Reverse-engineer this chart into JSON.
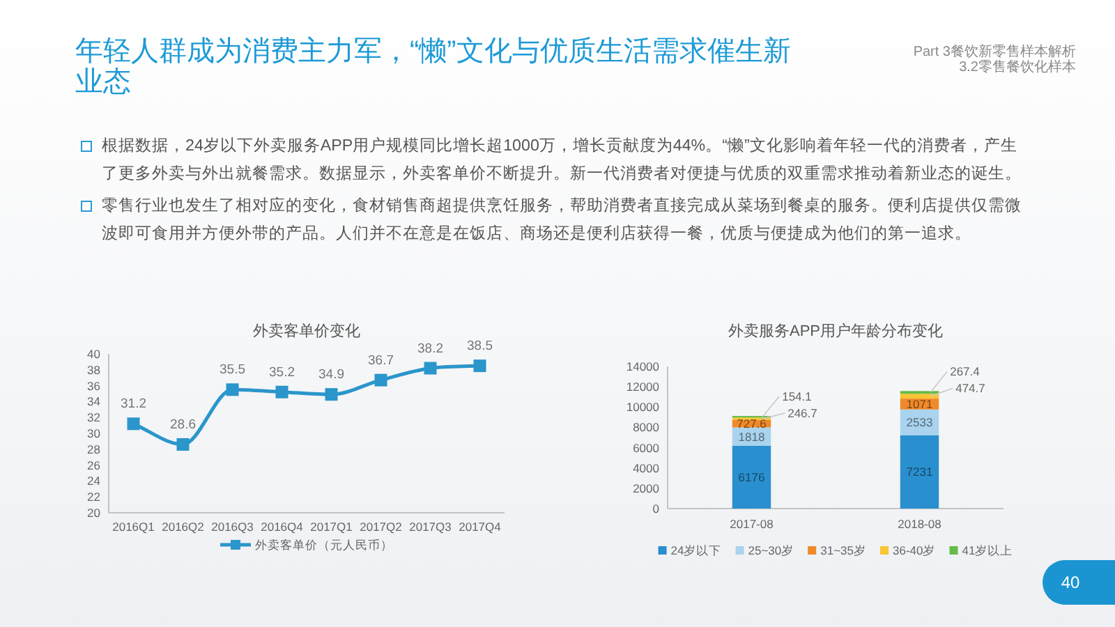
{
  "chart_data": [
    {
      "type": "other",
      "title": "年轻人群成为消费主力军，“懒”文化与优质生活需求催生新业态",
      "annotations": [
        "Part 3餐饮新零售样本解析",
        "3.2零售餐饮化样本",
        "根据数据，24岁以下外卖服务APP用户规模同比增长超1000万，增长贡献度为44%。“懒”文化影响着年轻一代的消费者，产生了更多外卖与外出就餐需求。数据显示，外卖客单价不断提升。新一代消费者对便捷与优质的双重需求推动着新业态的诞生。",
        "零售行业也发生了相对应的变化，食材销售商超提供烹饪服务，帮助消费者直接完成从菜场到餐桌的服务。便利店提供仅需微波即可食用并方便外带的产品。人们并不在意是在饭店、商场还是便利店获得一餐，优质与便捷成为他们的第一追求。",
        "40"
      ]
    },
    {
      "type": "line",
      "title": "外卖客单价变化",
      "categories": [
        "2016Q1",
        "2016Q2",
        "2016Q3",
        "2016Q4",
        "2017Q1",
        "2017Q2",
        "2017Q3",
        "2017Q4"
      ],
      "series": [
        {
          "name": "外卖客单价（元人民币）",
          "color": "#2a96cb",
          "values": [
            31.2,
            28.6,
            35.5,
            35.2,
            34.9,
            36.7,
            38.2,
            38.5
          ]
        }
      ],
      "ylim": [
        20,
        40
      ],
      "yticks": [
        20,
        22,
        24,
        26,
        28,
        30,
        32,
        34,
        36,
        38,
        40
      ],
      "data_labels": true,
      "marker": "square",
      "legend": "bottom"
    },
    {
      "type": "bar",
      "stacked": true,
      "title": "外卖服务APP用户年龄分布变化",
      "categories": [
        "2017-08",
        "2018-08"
      ],
      "series": [
        {
          "name": "24岁以下",
          "color": "#2a8fcf",
          "values": [
            6176,
            7231
          ]
        },
        {
          "name": "25~30岁",
          "color": "#a9d3ee",
          "values": [
            1818,
            2533
          ]
        },
        {
          "name": "31~35岁",
          "color": "#f0892a",
          "values": [
            727.6,
            1071
          ]
        },
        {
          "name": "36-40岁",
          "color": "#f9c534",
          "values": [
            246.7,
            474.7
          ]
        },
        {
          "name": "41岁以上",
          "color": "#66bb47",
          "values": [
            154.1,
            267.4
          ]
        }
      ],
      "ylim": [
        0,
        14000
      ],
      "yticks": [
        0,
        2000,
        4000,
        6000,
        8000,
        10000,
        12000,
        14000
      ],
      "data_labels": true,
      "legend": "bottom"
    }
  ]
}
